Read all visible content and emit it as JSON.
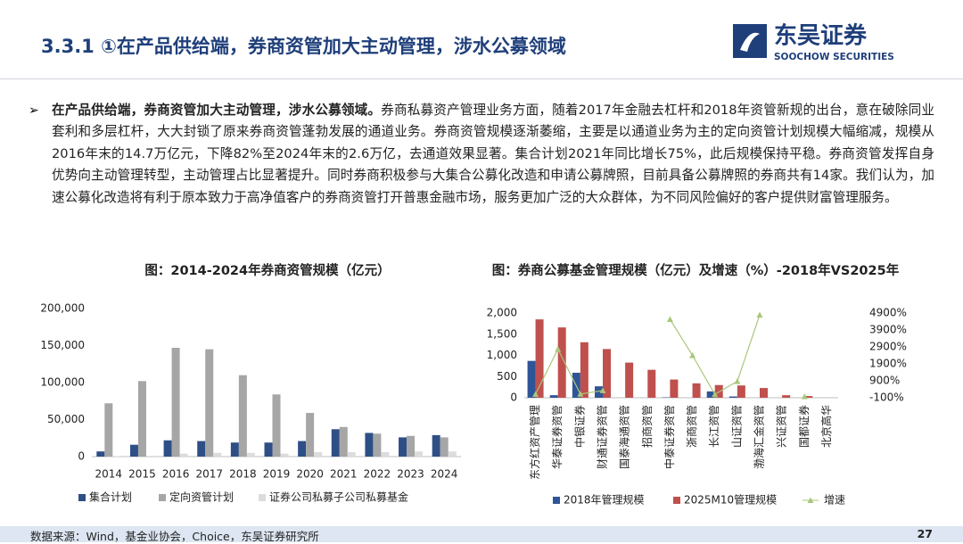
{
  "header": {
    "title": "3.3.1 ①在产品供给端，券商资管加大主动管理，涉水公募领域",
    "logo_cn": "东吴证券",
    "logo_en": "SOOCHOW SECURITIES"
  },
  "body": {
    "bold": "在产品供给端，券商资管加大主动管理，涉水公募领域。",
    "text": "券商私募资产管理业务方面，随着2017年金融去杠杆和2018年资管新规的出台，意在破除同业套利和多层杠杆，大大封锁了原来券商资管蓬勃发展的通道业务。券商资管规模逐渐萎缩，主要是以通道业务为主的定向资管计划规模大幅缩减，规模从2016年末的14.7万亿元，下降82%至2024年末的2.6万亿，去通道效果显著。集合计划2021年同比增长75%，此后规模保持平稳。券商资管发挥自身优势向主动管理转型，主动管理占比显著提升。同时券商积极参与大集合公募化改造和申请公募牌照，目前具备公募牌照的券商共有14家。我们认为，加速公募化改造将有利于原本致力于高净值客户的券商资管打开普惠金融市场，服务更加广泛的大众群体，为不同风险偏好的客户提供财富管理服务。"
  },
  "chart_data": [
    {
      "type": "bar",
      "title": "图：2014-2024年券商资管规模（亿元）",
      "categories": [
        "2014",
        "2015",
        "2016",
        "2017",
        "2018",
        "2019",
        "2020",
        "2021",
        "2022",
        "2023",
        "2024"
      ],
      "series": [
        {
          "name": "集合计划",
          "color": "#2e4f86",
          "values": [
            7000,
            16000,
            22000,
            21000,
            19000,
            19000,
            21000,
            37000,
            32000,
            26000,
            29000
          ]
        },
        {
          "name": "定向资管计划",
          "color": "#a6a6a6",
          "values": [
            72000,
            102000,
            147000,
            145000,
            110000,
            84000,
            59000,
            40000,
            31000,
            28000,
            26000
          ]
        },
        {
          "name": "证券公司私募子公司私募基金",
          "color": "#dcdcdc",
          "values": [
            500,
            1000,
            4000,
            5000,
            5000,
            4000,
            6000,
            6000,
            6000,
            7000,
            7000
          ]
        }
      ],
      "ylim": [
        0,
        200000
      ],
      "yticks": [
        0,
        {
          "value": 50000,
          "label": "50,000"
        },
        {
          "value": 100000,
          "label": "100,000"
        },
        {
          "value": 150000,
          "label": "150,000"
        },
        {
          "value": 200000,
          "label": "200,000"
        }
      ]
    },
    {
      "type": "bar",
      "title": "图：券商公募基金管理规模（亿元）及增速（%）-2018年VS2025年",
      "categories": [
        "东方红资产管理",
        "华泰证券资管",
        "中银证券",
        "财通证券资管",
        "国泰海通资管",
        "招商资管",
        "中泰证券资管",
        "浙商资管",
        "长江资管",
        "山证资管",
        "渤海汇金资管",
        "兴证资管",
        "国都证券",
        "北京高华"
      ],
      "series": [
        {
          "name": "2018年管理规模",
          "color": "#2e5597",
          "values": [
            870,
            60,
            590,
            270,
            0,
            0,
            10,
            0,
            150,
            30,
            0,
            0,
            0,
            0
          ]
        },
        {
          "name": "2025M10管理规模",
          "color": "#c0504d",
          "values": [
            1850,
            1660,
            1310,
            1150,
            830,
            660,
            430,
            340,
            300,
            290,
            230,
            60,
            40,
            0
          ]
        },
        {
          "name": "增速",
          "color": "#a9c77a",
          "type": "line",
          "axis": "y2",
          "values": [
            110,
            2767,
            122,
            326,
            null,
            null,
            4530,
            2400,
            100,
            867,
            4790,
            null,
            -30,
            null
          ]
        }
      ],
      "ylim": [
        0,
        2000
      ],
      "yticks": [
        0,
        500,
        {
          "value": 1000,
          "label": "1,000"
        },
        {
          "value": 1500,
          "label": "1,500"
        },
        {
          "value": 2000,
          "label": "2,000"
        }
      ],
      "y2lim": [
        -100,
        4900
      ],
      "y2ticks": [
        {
          "value": -100,
          "label": "-100%"
        },
        {
          "value": 900,
          "label": "900%"
        },
        {
          "value": 1900,
          "label": "1900%"
        },
        {
          "value": 2900,
          "label": "2900%"
        },
        {
          "value": 3900,
          "label": "3900%"
        },
        {
          "value": 4900,
          "label": "4900%"
        }
      ]
    }
  ],
  "footer": {
    "source": "数据来源：Wind，基金业协会，Choice，东吴证券研究所",
    "page": "27"
  }
}
